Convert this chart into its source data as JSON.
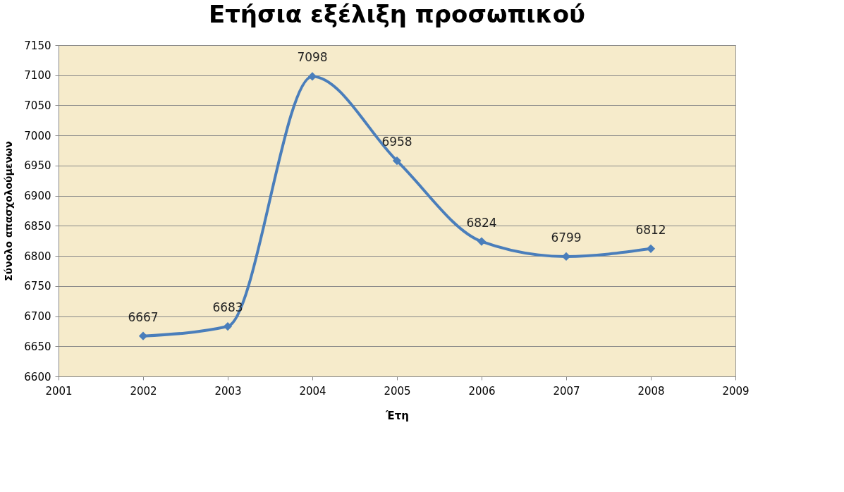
{
  "chart_data": {
    "type": "line",
    "title": "Ετήσια εξέλιξη προσωπικού",
    "xlabel": "Έτη",
    "ylabel": "Σύνολο απασχολούμενων",
    "x": [
      2002,
      2003,
      2004,
      2005,
      2006,
      2007,
      2008
    ],
    "series": [
      {
        "color": "#4a7ebb",
        "values": [
          6667,
          6683,
          7098,
          6958,
          6824,
          6799,
          6812
        ]
      }
    ],
    "xlim": [
      2001,
      2009
    ],
    "xticks": [
      2001,
      2002,
      2003,
      2004,
      2005,
      2006,
      2007,
      2008,
      2009
    ],
    "ylim": [
      6600,
      7150
    ],
    "yticks": [
      6600,
      6650,
      6700,
      6750,
      6800,
      6850,
      6900,
      6950,
      7000,
      7050,
      7100,
      7150
    ],
    "grid": "y",
    "marker": "diamond",
    "line_style": "solid",
    "data_labels": true
  }
}
